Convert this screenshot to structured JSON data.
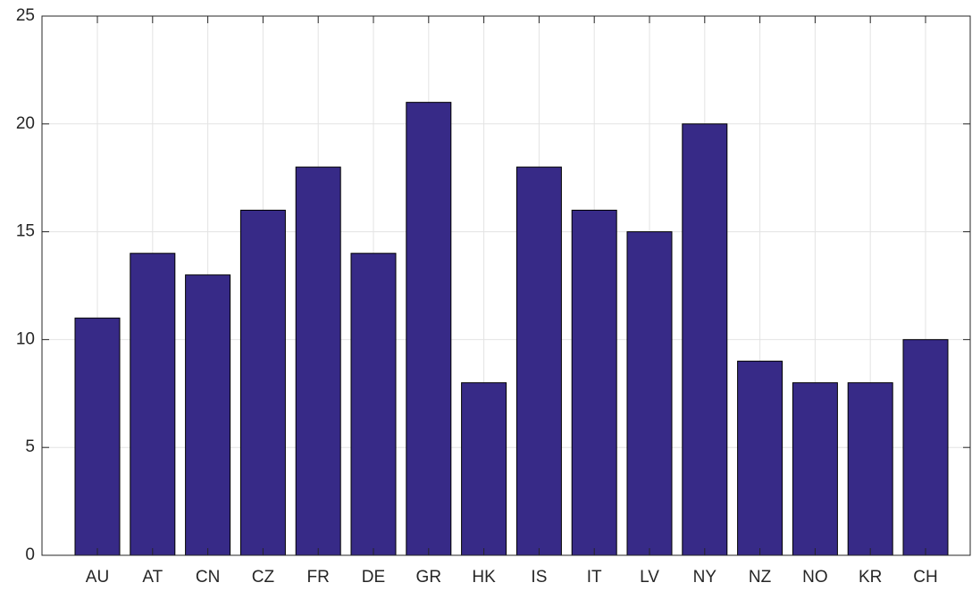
{
  "chart_data": {
    "type": "bar",
    "categories": [
      "AU",
      "AT",
      "CN",
      "CZ",
      "FR",
      "DE",
      "GR",
      "HK",
      "IS",
      "IT",
      "LV",
      "NY",
      "NZ",
      "NO",
      "KR",
      "CH"
    ],
    "values": [
      11,
      14,
      13,
      16,
      18,
      14,
      21,
      8,
      18,
      16,
      15,
      20,
      9,
      8,
      8,
      10
    ],
    "color": "#372a87",
    "ylim": [
      0,
      25
    ],
    "yticks": [
      0,
      5,
      10,
      15,
      20,
      25
    ],
    "grid": true
  }
}
